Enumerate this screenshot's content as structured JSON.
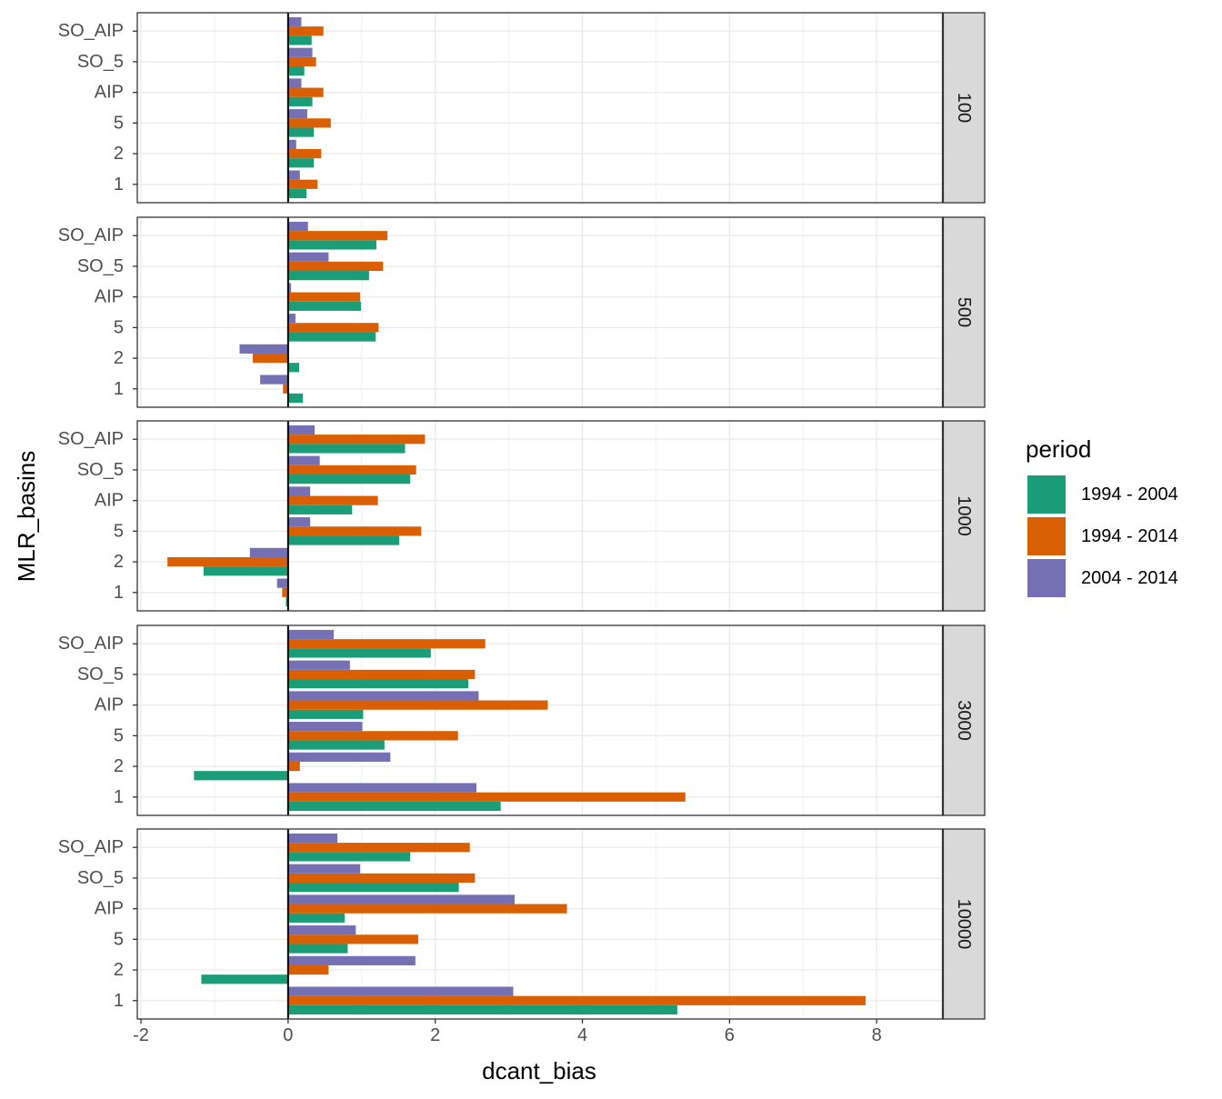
{
  "chart_data": {
    "type": "bar",
    "orientation": "horizontal",
    "facet_by": "strip",
    "xlabel": "dcant_bias",
    "ylabel": "MLR_basins",
    "xlim": [
      -2.05,
      8.9
    ],
    "x_ticks": [
      -2,
      0,
      2,
      4,
      6,
      8
    ],
    "x_tick_labels": [
      "-2",
      "0",
      "2",
      "4",
      "6",
      "8"
    ],
    "categories": [
      "SO_AIP",
      "SO_5",
      "AIP",
      "5",
      "2",
      "1"
    ],
    "grid": true,
    "reference_line_x": 0,
    "legend": {
      "title": "period",
      "position": "right",
      "entries": [
        {
          "label": "1994 - 2004",
          "color": "#1b9e77"
        },
        {
          "label": "1994 - 2014",
          "color": "#d95f02"
        },
        {
          "label": "2004 - 2014",
          "color": "#7570b3"
        }
      ]
    },
    "panels": [
      {
        "strip": "100",
        "series": [
          {
            "name": "1994 - 2004",
            "values": [
              0.32,
              0.22,
              0.33,
              0.35,
              0.35,
              0.25
            ]
          },
          {
            "name": "1994 - 2014",
            "values": [
              0.48,
              0.38,
              0.48,
              0.58,
              0.45,
              0.4
            ]
          },
          {
            "name": "2004 - 2014",
            "values": [
              0.18,
              0.33,
              0.18,
              0.26,
              0.11,
              0.16
            ]
          }
        ]
      },
      {
        "strip": "500",
        "series": [
          {
            "name": "1994 - 2004",
            "values": [
              1.2,
              1.1,
              0.99,
              1.19,
              0.15,
              0.2
            ]
          },
          {
            "name": "1994 - 2014",
            "values": [
              1.35,
              1.29,
              0.98,
              1.23,
              -0.48,
              -0.07
            ]
          },
          {
            "name": "2004 - 2014",
            "values": [
              0.27,
              0.55,
              0.04,
              0.1,
              -0.66,
              -0.38
            ]
          }
        ]
      },
      {
        "strip": "1000",
        "series": [
          {
            "name": "1994 - 2004",
            "values": [
              1.59,
              1.66,
              0.87,
              1.51,
              -1.15,
              -0.03
            ]
          },
          {
            "name": "1994 - 2014",
            "values": [
              1.86,
              1.74,
              1.22,
              1.81,
              -1.64,
              -0.08
            ]
          },
          {
            "name": "2004 - 2014",
            "values": [
              0.36,
              0.43,
              0.3,
              0.3,
              -0.52,
              -0.15
            ]
          }
        ]
      },
      {
        "strip": "3000",
        "series": [
          {
            "name": "1994 - 2004",
            "values": [
              1.94,
              2.45,
              1.02,
              1.31,
              -1.28,
              2.89
            ]
          },
          {
            "name": "1994 - 2014",
            "values": [
              2.68,
              2.54,
              3.53,
              2.31,
              0.16,
              5.4
            ]
          },
          {
            "name": "2004 - 2014",
            "values": [
              0.62,
              0.84,
              2.59,
              1.01,
              1.39,
              2.56
            ]
          }
        ]
      },
      {
        "strip": "10000",
        "series": [
          {
            "name": "1994 - 2004",
            "values": [
              1.66,
              2.32,
              0.77,
              0.81,
              -1.18,
              5.29
            ]
          },
          {
            "name": "1994 - 2014",
            "values": [
              2.47,
              2.54,
              3.79,
              1.77,
              0.55,
              7.85
            ]
          },
          {
            "name": "2004 - 2014",
            "values": [
              0.67,
              0.98,
              3.08,
              0.92,
              1.73,
              3.06
            ]
          }
        ]
      }
    ]
  }
}
